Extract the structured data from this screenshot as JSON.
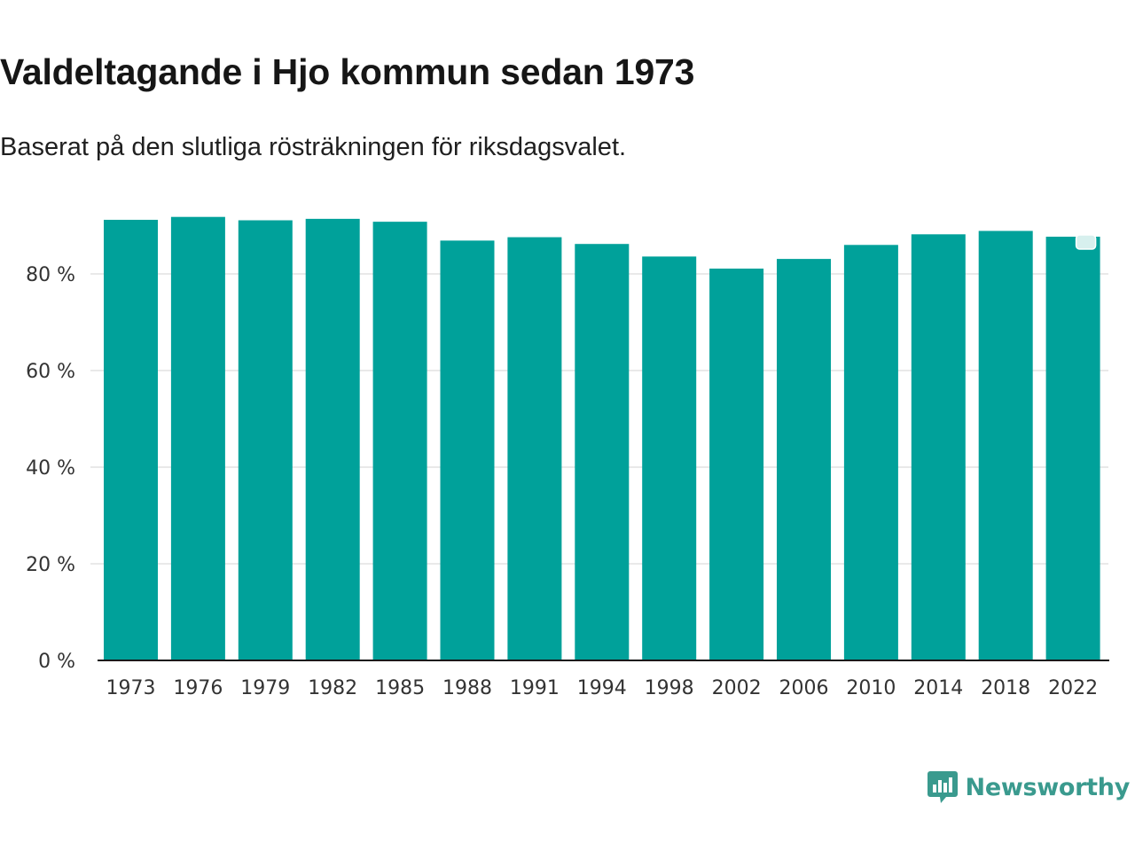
{
  "title": "Valdeltagande i Hjo kommun sedan 1973",
  "subtitle": "Baserat på den slutliga rösträkningen för riksdagsvalet.",
  "brand": {
    "name": "Newsworthy",
    "icon": "bar-chart-bubble-icon",
    "color": "#3a9a8e"
  },
  "chart_data": {
    "type": "bar",
    "title": "Valdeltagande i Hjo kommun sedan 1973",
    "subtitle": "Baserat på den slutliga rösträkningen för riksdagsvalet.",
    "xlabel": "",
    "ylabel": "",
    "categories": [
      "1973",
      "1976",
      "1979",
      "1982",
      "1985",
      "1988",
      "1991",
      "1994",
      "1998",
      "2002",
      "2006",
      "2010",
      "2014",
      "2018",
      "2022"
    ],
    "values": [
      91.2,
      91.8,
      91.1,
      91.4,
      90.8,
      86.9,
      87.6,
      86.2,
      83.6,
      81.1,
      83.1,
      86.0,
      88.2,
      88.9,
      87.7
    ],
    "ylim": [
      0,
      100
    ],
    "yticks": [
      0,
      20,
      40,
      60,
      80
    ],
    "ytick_labels": [
      "0 %",
      "20 %",
      "40 %",
      "60 %",
      "80 %"
    ],
    "grid": true,
    "bar_color": "#00a19a",
    "highlight_marker": "2022"
  }
}
